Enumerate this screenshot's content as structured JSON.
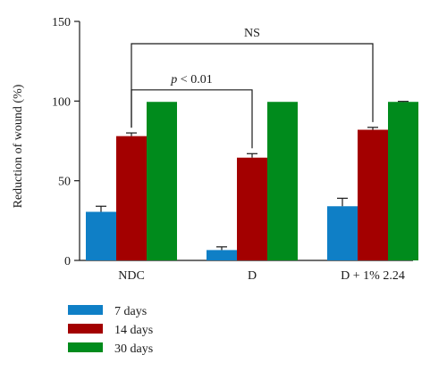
{
  "chart_data": {
    "type": "bar",
    "ylabel": "Reduction of wound (%)",
    "ylim": [
      0,
      150
    ],
    "yticks": [
      0,
      50,
      100,
      150
    ],
    "categories": [
      "NDC",
      "D",
      "D + 1% 2.24"
    ],
    "series": [
      {
        "name": "7 days",
        "color": "#0f7fc6",
        "values": [
          30.5,
          6.5,
          34
        ],
        "errors": [
          3.5,
          2,
          5
        ]
      },
      {
        "name": "14 days",
        "color": "#a30000",
        "values": [
          78,
          64.5,
          82
        ],
        "errors": [
          2,
          2.5,
          1.5
        ]
      },
      {
        "name": "30 days",
        "color": "#008b1c",
        "values": [
          99.5,
          99.5,
          99.5
        ],
        "errors": [
          0,
          0,
          0.3
        ]
      }
    ],
    "legend_position": "bottom-left",
    "annotations": [
      {
        "text": "NS",
        "from_category": 0,
        "to_category": 2,
        "series": 1,
        "y": 136
      },
      {
        "text": "p < 0.01",
        "italic_part": "p",
        "from_category": 0,
        "to_category": 1,
        "series": 1,
        "y": 107
      }
    ]
  }
}
